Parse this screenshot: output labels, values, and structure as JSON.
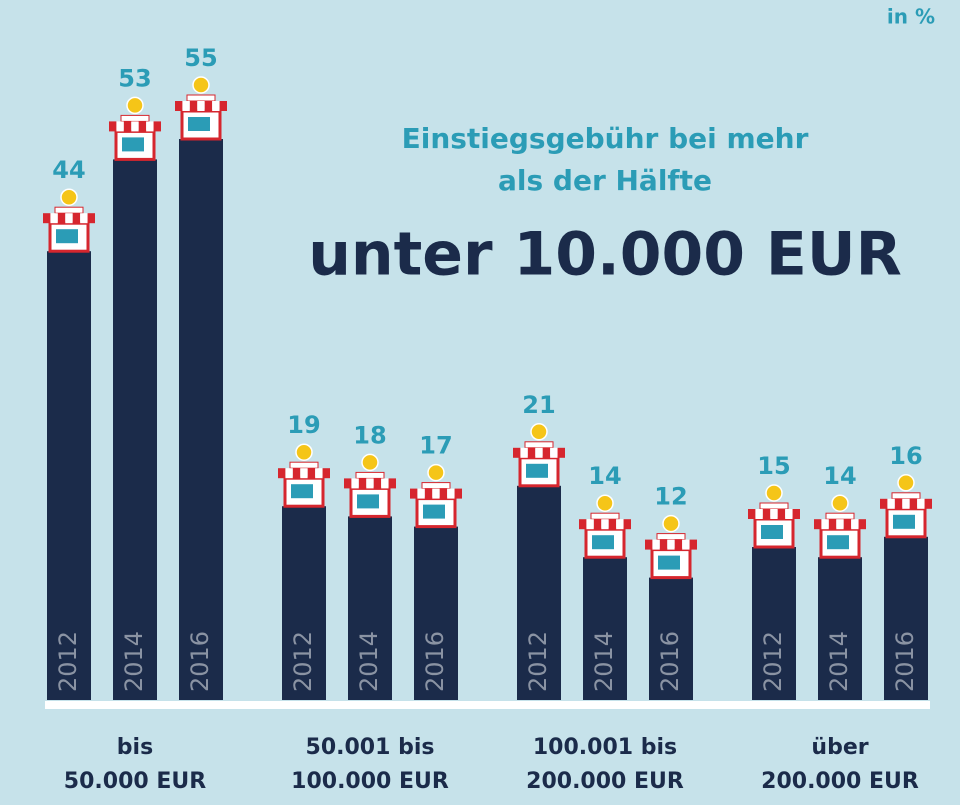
{
  "chart_data": {
    "type": "bar",
    "unit": "in %",
    "title": [
      "Einstiegsgebühr bei mehr",
      "als der Hälfte"
    ],
    "headline": "unter 10.000 EUR",
    "categories": [
      [
        "bis",
        "50.000 EUR"
      ],
      [
        "50.001 bis",
        "100.000 EUR"
      ],
      [
        "100.001 bis",
        "200.000 EUR"
      ],
      [
        "über",
        "200.000 EUR"
      ]
    ],
    "series": [
      {
        "name": "2012",
        "color": "#1b2b4a",
        "values": [
          44,
          19,
          21,
          15
        ]
      },
      {
        "name": "2014",
        "color": "#1b2b4a",
        "values": [
          53,
          18,
          14,
          14
        ]
      },
      {
        "name": "2016",
        "color": "#1b2b4a",
        "values": [
          55,
          17,
          12,
          16
        ]
      }
    ]
  }
}
